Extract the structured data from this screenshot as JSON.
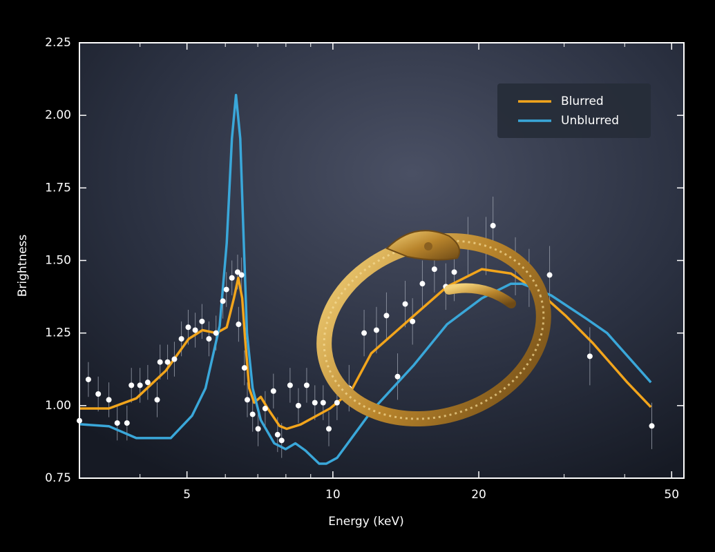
{
  "chart_data": {
    "type": "line",
    "xlabel": "Energy (keV)",
    "ylabel": "Brightness",
    "xscale": "log",
    "xlim": [
      3,
      53
    ],
    "xticks": [
      5,
      10,
      20,
      50
    ],
    "xminorticks": [
      3,
      4,
      6,
      7,
      8,
      9,
      30,
      40
    ],
    "ylim": [
      0.75,
      2.25
    ],
    "yticks": [
      0.75,
      {
        "value": 1,
        "label": "1.00"
      },
      1.25,
      {
        "value": 1.5,
        "label": "1.50"
      },
      1.75,
      {
        "value": 2,
        "label": "2.00"
      },
      2.25
    ],
    "legend": "upper right",
    "series": [
      {
        "name": "Blurred",
        "color": "#f2a51c",
        "x": [
          3,
          3.45,
          3.93,
          4.52,
          5.04,
          5.38,
          5.75,
          6.04,
          6.25,
          6.38,
          6.5,
          6.59,
          6.72,
          6.88,
          7.1,
          7.34,
          7.76,
          8.03,
          8.58,
          9.86,
          10.9,
          12.0,
          14.7,
          17.2,
          20.3,
          23.3,
          26.5,
          30.2,
          34.4,
          40.5,
          45.3
        ],
        "values": [
          0.99,
          0.99,
          1.025,
          1.12,
          1.23,
          1.26,
          1.25,
          1.27,
          1.37,
          1.44,
          1.37,
          1.23,
          1.06,
          1.01,
          1.03,
          0.99,
          0.93,
          0.92,
          0.935,
          0.99,
          1.05,
          1.18,
          1.31,
          1.41,
          1.47,
          1.455,
          1.395,
          1.31,
          1.215,
          1.08,
          0.995
        ]
      },
      {
        "name": "Unblurred",
        "color": "#3aa7d9",
        "x": [
          3,
          3.45,
          3.93,
          4.63,
          5.12,
          5.46,
          5.84,
          6.04,
          6.19,
          6.31,
          6.44,
          6.55,
          6.65,
          6.83,
          7.1,
          7.57,
          7.99,
          8.37,
          8.78,
          9.37,
          9.69,
          10.2,
          12.0,
          14.7,
          17.2,
          20.3,
          23.3,
          24.6,
          28.2,
          33.3,
          36.8,
          45.3
        ],
        "values": [
          0.936,
          0.929,
          0.888,
          0.888,
          0.965,
          1.06,
          1.275,
          1.56,
          1.92,
          2.07,
          1.92,
          1.56,
          1.25,
          1.06,
          0.95,
          0.87,
          0.85,
          0.87,
          0.845,
          0.8,
          0.8,
          0.82,
          0.98,
          1.14,
          1.28,
          1.37,
          1.42,
          1.42,
          1.38,
          1.3,
          1.25,
          1.08
        ]
      }
    ],
    "points": {
      "color": "#ffffff",
      "x": [
        3.0,
        3.13,
        3.28,
        3.45,
        3.59,
        3.76,
        3.84,
        4.0,
        4.15,
        4.34,
        4.4,
        4.56,
        4.71,
        4.87,
        5.03,
        5.2,
        5.37,
        5.55,
        5.74,
        5.93,
        6.03,
        6.19,
        6.36,
        6.39,
        6.48,
        6.57,
        6.66,
        6.83,
        7.01,
        7.25,
        7.54,
        7.69,
        7.84,
        8.16,
        8.49,
        8.83,
        9.18,
        9.55,
        9.81,
        10.2,
        10.8,
        11.6,
        12.3,
        12.9,
        13.6,
        14.1,
        14.6,
        15.3,
        16.2,
        17.1,
        17.8,
        19.0,
        20.7,
        21.4,
        23.8,
        25.4,
        28.0,
        33.9,
        45.5
      ],
      "values": [
        0.948,
        1.09,
        1.04,
        1.02,
        0.94,
        0.94,
        1.07,
        1.07,
        1.08,
        1.02,
        1.15,
        1.15,
        1.16,
        1.23,
        1.27,
        1.26,
        1.29,
        1.23,
        1.25,
        1.36,
        1.4,
        1.44,
        1.46,
        1.28,
        1.45,
        1.13,
        1.02,
        0.97,
        0.92,
        0.99,
        1.05,
        0.9,
        0.88,
        1.07,
        1.0,
        1.07,
        1.01,
        1.01,
        0.92,
        1.01,
        1.06,
        1.25,
        1.26,
        1.31,
        1.1,
        1.35,
        1.29,
        1.42,
        1.47,
        1.41,
        1.46,
        1.55,
        1.55,
        1.62,
        1.48,
        1.44,
        1.45,
        1.17,
        0.93
      ],
      "yerr": [
        0.06,
        0.06,
        0.06,
        0.06,
        0.06,
        0.06,
        0.06,
        0.06,
        0.06,
        0.06,
        0.06,
        0.06,
        0.06,
        0.06,
        0.06,
        0.06,
        0.06,
        0.06,
        0.06,
        0.06,
        0.06,
        0.06,
        0.06,
        0.06,
        0.06,
        0.06,
        0.06,
        0.06,
        0.06,
        0.06,
        0.06,
        0.06,
        0.06,
        0.06,
        0.06,
        0.06,
        0.06,
        0.06,
        0.06,
        0.06,
        0.08,
        0.08,
        0.08,
        0.08,
        0.08,
        0.08,
        0.08,
        0.08,
        0.08,
        0.08,
        0.1,
        0.1,
        0.1,
        0.1,
        0.1,
        0.1,
        0.1,
        0.1,
        0.08
      ]
    }
  }
}
